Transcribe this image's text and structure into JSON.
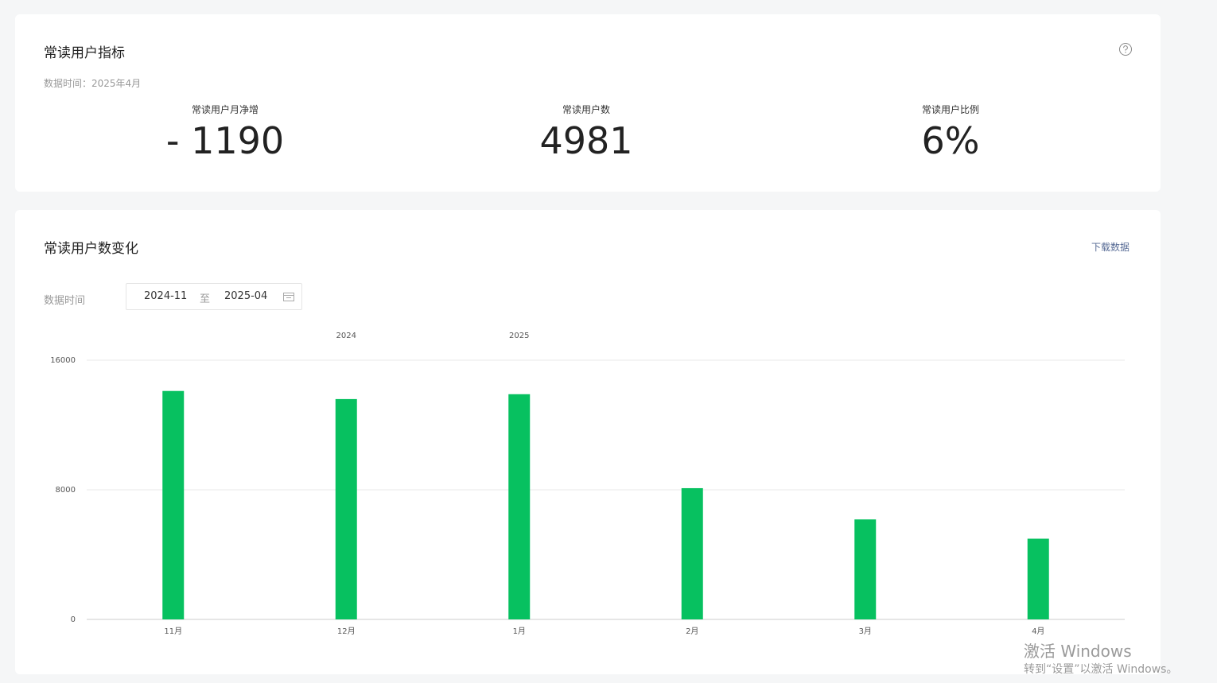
{
  "metrics_card": {
    "title": "常读用户指标",
    "data_time": "数据时间：2025年4月",
    "metrics": [
      {
        "label": "常读用户月净增",
        "value": "- 1190"
      },
      {
        "label": "常读用户数",
        "value": "4981"
      },
      {
        "label": "常读用户比例",
        "value": "6%"
      }
    ]
  },
  "trend_card": {
    "title": "常读用户数变化",
    "download": "下载数据",
    "date_label": "数据时间",
    "date_start": "2024-11",
    "date_separator": "至",
    "date_end": "2025-04"
  },
  "chart_data": {
    "type": "bar",
    "categories": [
      "11月",
      "12月",
      "1月",
      "2月",
      "3月",
      "4月"
    ],
    "year_labels": [
      null,
      "2024",
      "2025",
      null,
      null,
      null
    ],
    "values": [
      14100,
      13600,
      13900,
      8100,
      6171,
      4981
    ],
    "color": "#07c160",
    "ylim": [
      0,
      16000
    ],
    "yticks": [
      0,
      8000,
      16000
    ],
    "grid": true
  },
  "watermark": {
    "line1": "激活 Windows",
    "line2": "转到“设置”以激活 Windows。"
  }
}
